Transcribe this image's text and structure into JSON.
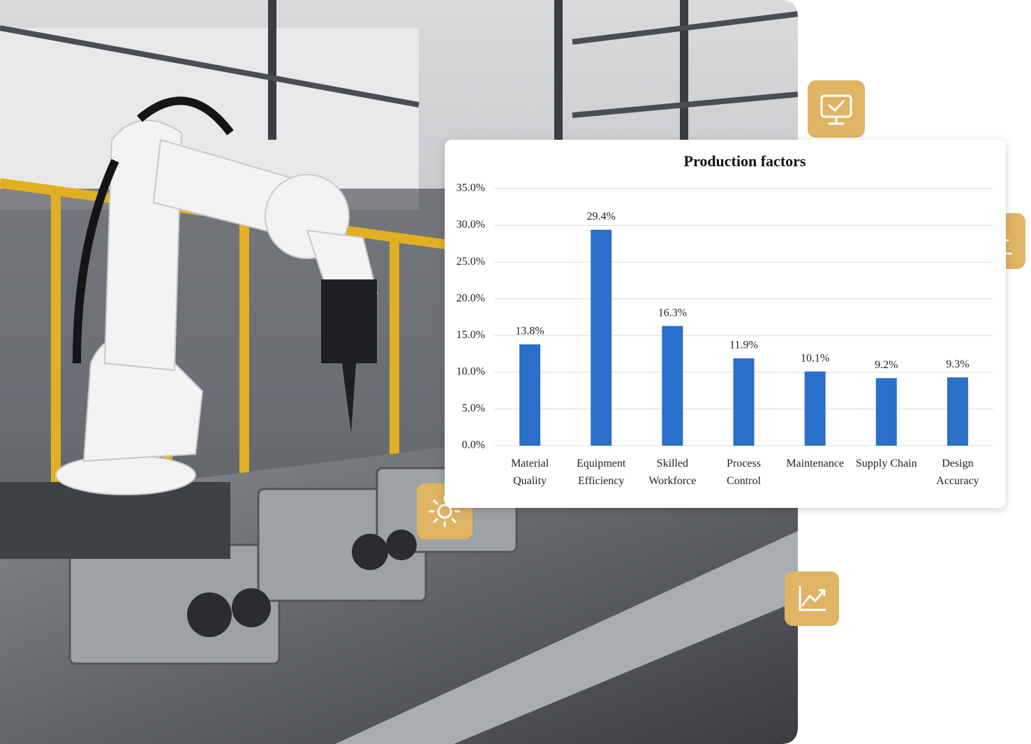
{
  "chart_data": {
    "type": "bar",
    "title": "Production factors",
    "categories": [
      "Material Quality",
      "Equipment Efficiency",
      "Skilled Workforce",
      "Process Control",
      "Maintenance",
      "Supply Chain",
      "Design Accuracy"
    ],
    "values": [
      13.8,
      29.4,
      16.3,
      11.9,
      10.1,
      9.2,
      9.3
    ],
    "value_labels": [
      "13.8%",
      "29.4%",
      "16.3%",
      "11.9%",
      "10.1%",
      "9.2%",
      "9.3%"
    ],
    "color": "#2a6fc9",
    "ylim": [
      0,
      35
    ],
    "yticks": [
      {
        "value": 0,
        "label": "0.0%"
      },
      {
        "value": 5,
        "label": "5.0%"
      },
      {
        "value": 10,
        "label": "10.0%"
      },
      {
        "value": 15,
        "label": "15.0%"
      },
      {
        "value": 20,
        "label": "20.0%"
      },
      {
        "value": 25,
        "label": "25.0%"
      },
      {
        "value": 30,
        "label": "30.0%"
      },
      {
        "value": 35,
        "label": "35.0%"
      }
    ],
    "grid": true
  }
}
